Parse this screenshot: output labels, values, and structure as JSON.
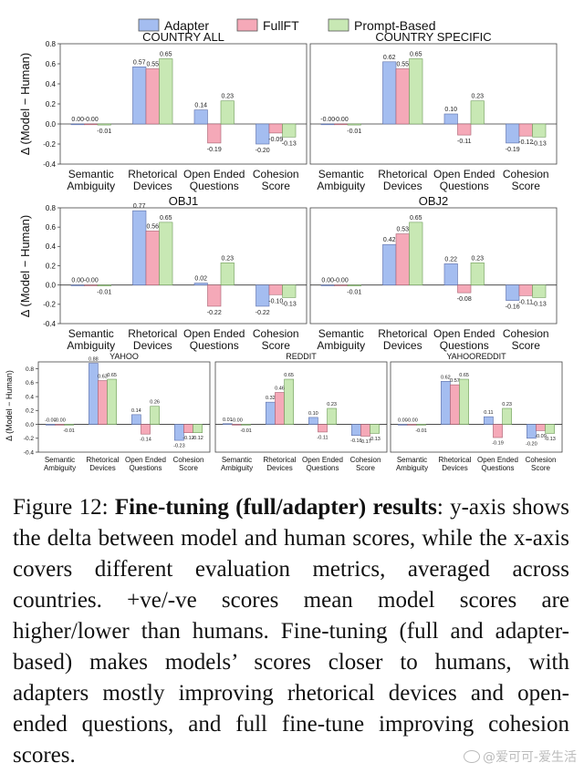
{
  "colors": {
    "adapter": "#a4bdf0",
    "fullft": "#f5a9b8",
    "prompt": "#c8e8b4",
    "adapter_edge": "#5d6fa8",
    "fullft_edge": "#a86070",
    "prompt_edge": "#6f9c5a"
  },
  "legend": [
    {
      "label": "Adapter",
      "color": "#a4bdf0"
    },
    {
      "label": "FullFT",
      "color": "#f5a9b8"
    },
    {
      "label": "Prompt-Based",
      "color": "#c8e8b4"
    }
  ],
  "ylabel": "Δ (Model − Human)",
  "chart_data": [
    {
      "type": "bar",
      "title": "COUNTRY ALL",
      "categories": [
        "Semantic Ambiguity",
        "Rhetorical Devices",
        "Open Ended Questions",
        "Cohesion Score"
      ],
      "series": [
        {
          "name": "Adapter",
          "values": [
            0.0,
            0.57,
            0.14,
            -0.2
          ],
          "labels": [
            "0.00",
            "0.57",
            "0.14",
            "-0.20"
          ]
        },
        {
          "name": "FullFT",
          "values": [
            -0.0,
            0.55,
            -0.19,
            -0.09
          ],
          "labels": [
            "-0.00",
            "0.55",
            "-0.19",
            "-0.09"
          ]
        },
        {
          "name": "Prompt-Based",
          "values": [
            -0.01,
            0.65,
            0.23,
            -0.13
          ],
          "labels": [
            "-0.01",
            "0.65",
            "0.23",
            "-0.13"
          ]
        }
      ],
      "ylim": [
        -0.4,
        0.8
      ],
      "yticks": [
        "0.8",
        "0.6",
        "0.4",
        "0.2",
        "0.0",
        "-0.2",
        "-0.4"
      ]
    },
    {
      "type": "bar",
      "title": "COUNTRY SPECIFIC",
      "categories": [
        "Semantic Ambiguity",
        "Rhetorical Devices",
        "Open Ended Questions",
        "Cohesion Score"
      ],
      "series": [
        {
          "name": "Adapter",
          "values": [
            -0.0,
            0.62,
            0.1,
            -0.19
          ],
          "labels": [
            "-0.00",
            "0.62",
            "0.10",
            "-0.19"
          ]
        },
        {
          "name": "FullFT",
          "values": [
            -0.0,
            0.55,
            -0.11,
            -0.12
          ],
          "labels": [
            "-0.00",
            "0.55",
            "-0.11",
            "-0.12"
          ]
        },
        {
          "name": "Prompt-Based",
          "values": [
            -0.01,
            0.65,
            0.23,
            -0.13
          ],
          "labels": [
            "-0.01",
            "0.65",
            "0.23",
            "-0.13"
          ]
        }
      ],
      "ylim": [
        -0.4,
        0.8
      ],
      "yticks": []
    },
    {
      "type": "bar",
      "title": "OBJ1",
      "categories": [
        "Semantic Ambiguity",
        "Rhetorical Devices",
        "Open Ended Questions",
        "Cohesion Score"
      ],
      "series": [
        {
          "name": "Adapter",
          "values": [
            0.0,
            0.77,
            0.02,
            -0.22
          ],
          "labels": [
            "0.00",
            "0.77",
            "0.02",
            "-0.22"
          ]
        },
        {
          "name": "FullFT",
          "values": [
            -0.0,
            0.56,
            -0.22,
            -0.1
          ],
          "labels": [
            "-0.00",
            "0.56",
            "-0.22",
            "-0.10"
          ]
        },
        {
          "name": "Prompt-Based",
          "values": [
            -0.01,
            0.65,
            0.23,
            -0.13
          ],
          "labels": [
            "-0.01",
            "0.65",
            "0.23",
            "-0.13"
          ]
        }
      ],
      "ylim": [
        -0.4,
        0.8
      ],
      "yticks": [
        "0.8",
        "0.6",
        "0.4",
        "0.2",
        "0.0",
        "-0.2",
        "-0.4"
      ]
    },
    {
      "type": "bar",
      "title": "OBJ2",
      "categories": [
        "Semantic Ambiguity",
        "Rhetorical Devices",
        "Open Ended Questions",
        "Cohesion Score"
      ],
      "series": [
        {
          "name": "Adapter",
          "values": [
            0.0,
            0.42,
            0.22,
            -0.16
          ],
          "labels": [
            "0.00",
            "0.42",
            "0.22",
            "-0.16"
          ]
        },
        {
          "name": "FullFT",
          "values": [
            -0.0,
            0.53,
            -0.08,
            -0.11
          ],
          "labels": [
            "-0.00",
            "0.53",
            "-0.08",
            "-0.11"
          ]
        },
        {
          "name": "Prompt-Based",
          "values": [
            -0.01,
            0.65,
            0.23,
            -0.13
          ],
          "labels": [
            "-0.01",
            "0.65",
            "0.23",
            "-0.13"
          ]
        }
      ],
      "ylim": [
        -0.4,
        0.8
      ],
      "yticks": []
    },
    {
      "type": "bar",
      "title": "YAHOO",
      "categories": [
        "Semantic Ambiguity",
        "Rhetorical Devices",
        "Open Ended Questions",
        "Cohesion Score"
      ],
      "series": [
        {
          "name": "Adapter",
          "values": [
            -0.0,
            0.88,
            0.14,
            -0.23
          ],
          "labels": [
            "-0.00",
            "0.88",
            "0.14",
            "-0.23"
          ]
        },
        {
          "name": "FullFT",
          "values": [
            -0.0,
            0.63,
            -0.14,
            -0.12
          ],
          "labels": [
            "-0.00",
            "0.63",
            "-0.14",
            "-0.12"
          ]
        },
        {
          "name": "Prompt-Based",
          "values": [
            -0.01,
            0.65,
            0.26,
            -0.12
          ],
          "labels": [
            "-0.01",
            "0.65",
            "0.26",
            "-0.12"
          ]
        }
      ],
      "ylim": [
        -0.4,
        0.9
      ],
      "yticks": [
        "0.8",
        "0.6",
        "0.4",
        "0.2",
        "0.0",
        "-0.2",
        "-0.4"
      ]
    },
    {
      "type": "bar",
      "title": "REDDIT",
      "categories": [
        "Semantic Ambiguity",
        "Rhetorical Devices",
        "Open Ended Questions",
        "Cohesion Score"
      ],
      "series": [
        {
          "name": "Adapter",
          "values": [
            0.01,
            0.32,
            0.1,
            -0.16
          ],
          "labels": [
            "0.01",
            "0.32",
            "0.10",
            "-0.16"
          ]
        },
        {
          "name": "FullFT",
          "values": [
            -0.0,
            0.46,
            -0.11,
            -0.17
          ],
          "labels": [
            "-0.00",
            "0.46",
            "-0.11",
            "-0.17"
          ]
        },
        {
          "name": "Prompt-Based",
          "values": [
            -0.01,
            0.65,
            0.23,
            -0.13
          ],
          "labels": [
            "-0.01",
            "0.65",
            "0.23",
            "-0.13"
          ]
        }
      ],
      "ylim": [
        -0.4,
        0.9
      ],
      "yticks": []
    },
    {
      "type": "bar",
      "title": "YAHOOREDDIT",
      "categories": [
        "Semantic Ambiguity",
        "Rhetorical Devices",
        "Open Ended Questions",
        "Cohesion Score"
      ],
      "series": [
        {
          "name": "Adapter",
          "values": [
            0.0,
            0.62,
            0.11,
            -0.2
          ],
          "labels": [
            "0.00",
            "0.62",
            "0.11",
            "-0.20"
          ]
        },
        {
          "name": "FullFT",
          "values": [
            -0.0,
            0.57,
            -0.19,
            -0.09
          ],
          "labels": [
            "-0.00",
            "0.57",
            "-0.19",
            "-0.09"
          ]
        },
        {
          "name": "Prompt-Based",
          "values": [
            -0.01,
            0.65,
            0.23,
            -0.13
          ],
          "labels": [
            "-0.01",
            "0.65",
            "0.23",
            "-0.13"
          ]
        }
      ],
      "ylim": [
        -0.4,
        0.9
      ],
      "yticks": []
    }
  ],
  "caption": {
    "prefix": "Figure 12: ",
    "bold": "Fine-tuning (full/adapter) results",
    "rest": ": y-axis shows the delta between model and human scores, while the x-axis covers different evaluation metrics, averaged across countries. +ve/-ve scores mean model scores are higher/lower than humans. Fine-tuning (full and adapter-based) makes models’ scores closer to humans, with adapters mostly improving rhetorical devices and open-ended questions, and full fine-tune improving cohesion scores."
  },
  "watermark": "@爱可可-爱生活"
}
